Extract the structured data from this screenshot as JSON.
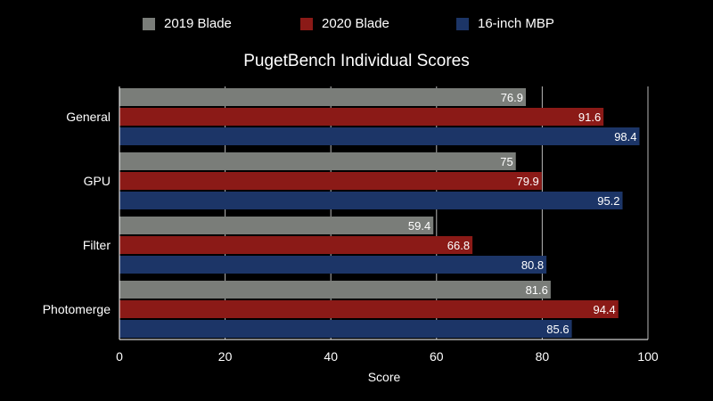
{
  "chart_data": {
    "type": "bar",
    "orientation": "horizontal",
    "title": "PugetBench Individual Scores",
    "xlabel": "Score",
    "ylabel": "",
    "xlim": [
      0,
      100
    ],
    "xticks": [
      0,
      20,
      40,
      60,
      80,
      100
    ],
    "categories": [
      "General",
      "GPU",
      "Filter",
      "Photomerge"
    ],
    "series": [
      {
        "name": "2019 Blade",
        "color": "#7a7d79",
        "values": [
          76.9,
          75,
          59.4,
          81.6
        ],
        "labels": [
          "76.9",
          "75",
          "59.4",
          "81.6"
        ]
      },
      {
        "name": "2020 Blade",
        "color": "#8b1a17",
        "values": [
          91.6,
          79.9,
          66.8,
          94.4
        ],
        "labels": [
          "91.6",
          "79.9",
          "66.8",
          "94.4"
        ]
      },
      {
        "name": "16-inch MBP",
        "color": "#1c3567",
        "values": [
          98.4,
          95.2,
          80.8,
          85.6
        ],
        "labels": [
          "98.4",
          "95.2",
          "80.8",
          "85.6"
        ]
      }
    ],
    "grid": true,
    "legend_position": "top",
    "background": "#000000",
    "text_color": "#ffffff"
  }
}
